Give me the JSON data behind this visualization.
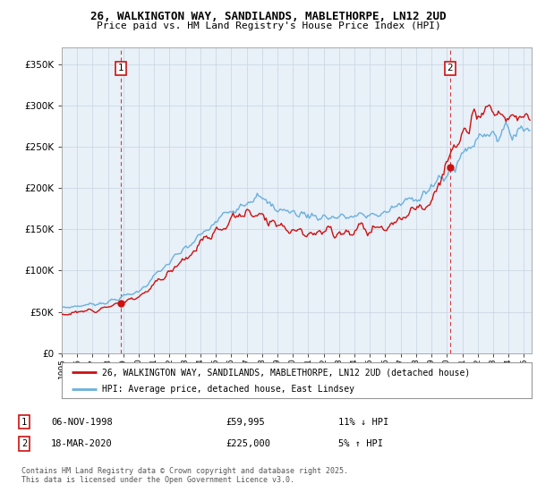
{
  "title1": "26, WALKINGTON WAY, SANDILANDS, MABLETHORPE, LN12 2UD",
  "title2": "Price paid vs. HM Land Registry's House Price Index (HPI)",
  "legend1": "26, WALKINGTON WAY, SANDILANDS, MABLETHORPE, LN12 2UD (detached house)",
  "legend2": "HPI: Average price, detached house, East Lindsey",
  "annotation1": {
    "label": "1",
    "date": "06-NOV-1998",
    "price": "£59,995",
    "hpi_note": "11% ↓ HPI"
  },
  "annotation2": {
    "label": "2",
    "date": "18-MAR-2020",
    "price": "£225,000",
    "hpi_note": "5% ↑ HPI"
  },
  "footer": "Contains HM Land Registry data © Crown copyright and database right 2025.\nThis data is licensed under the Open Government Licence v3.0.",
  "sale1_year": 1998.85,
  "sale1_price": 59995,
  "sale2_year": 2020.21,
  "sale2_price": 225000,
  "ylim": [
    0,
    370000
  ],
  "xlim_start": 1995.0,
  "xlim_end": 2025.5,
  "hpi_color": "#6ab0de",
  "price_color": "#cc1111",
  "plot_bg": "#e8f0f8"
}
